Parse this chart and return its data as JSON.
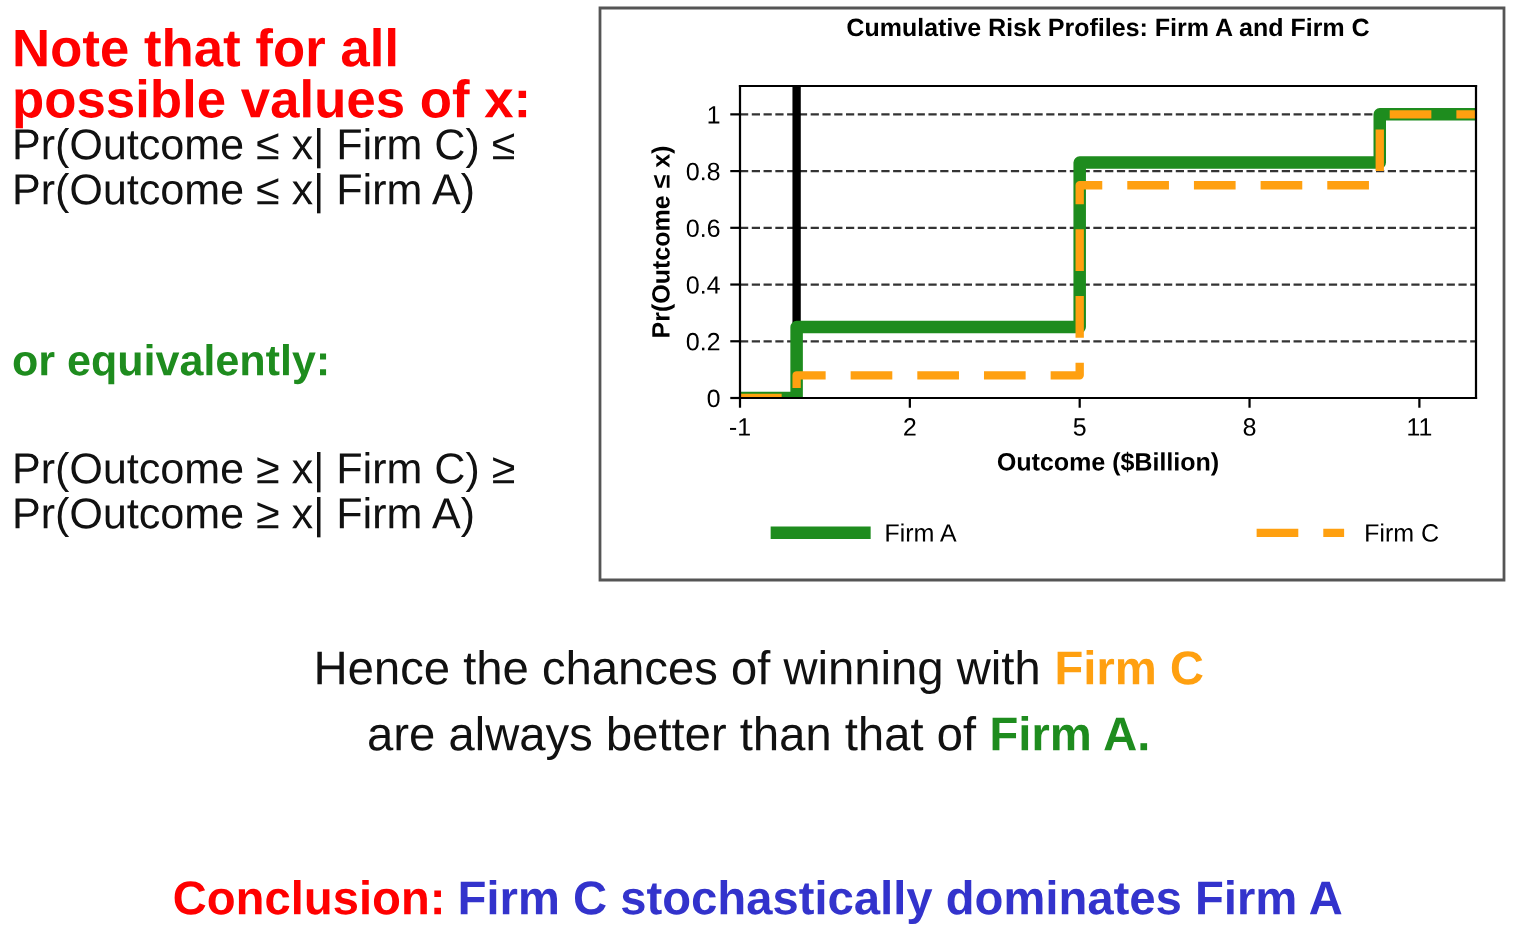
{
  "chart_data": {
    "type": "step",
    "title": "Cumulative Risk Profiles: Firm A and Firm C",
    "xlabel": "Outcome ($Billion)",
    "ylabel": "Pr(Outcome ≤ x)",
    "x": [
      -1,
      0,
      5,
      10.3,
      12
    ],
    "series": [
      {
        "name": "Firm A",
        "color": "#1e8c1e",
        "values": [
          0,
          0.25,
          0.83,
          1,
          1
        ],
        "line_style": "solid"
      },
      {
        "name": "Firm C",
        "color": "#ffa010",
        "values": [
          0,
          0.08,
          0.75,
          1,
          1
        ],
        "line_style": "dashed"
      }
    ],
    "xlim": [
      -1,
      12
    ],
    "xticks": [
      -1,
      2,
      5,
      8,
      11
    ],
    "ylim": [
      0,
      1.1
    ],
    "yticks": [
      0,
      0.2,
      0.4,
      0.6,
      0.8,
      1
    ],
    "grid": "y",
    "legend": "bottom",
    "marker": "none",
    "ref_lines": [
      {
        "axis": "x",
        "value": 0,
        "color": "#000000"
      }
    ],
    "annotations": [
      "Note that for all\npossible values of x:",
      "Pr(Outcome ≤ x| Firm C) ≤\nPr(Outcome ≤ x| Firm A)",
      "or equivalently:",
      "Pr(Outcome ≥ x| Firm C) ≥\nPr(Outcome ≥ x| Firm A)",
      "Hence the chances of winning with",
      "Firm C",
      "are always better than that of",
      "Firm A.",
      "Conclusion:",
      "Firm C stochastically dominates Firm A"
    ]
  }
}
